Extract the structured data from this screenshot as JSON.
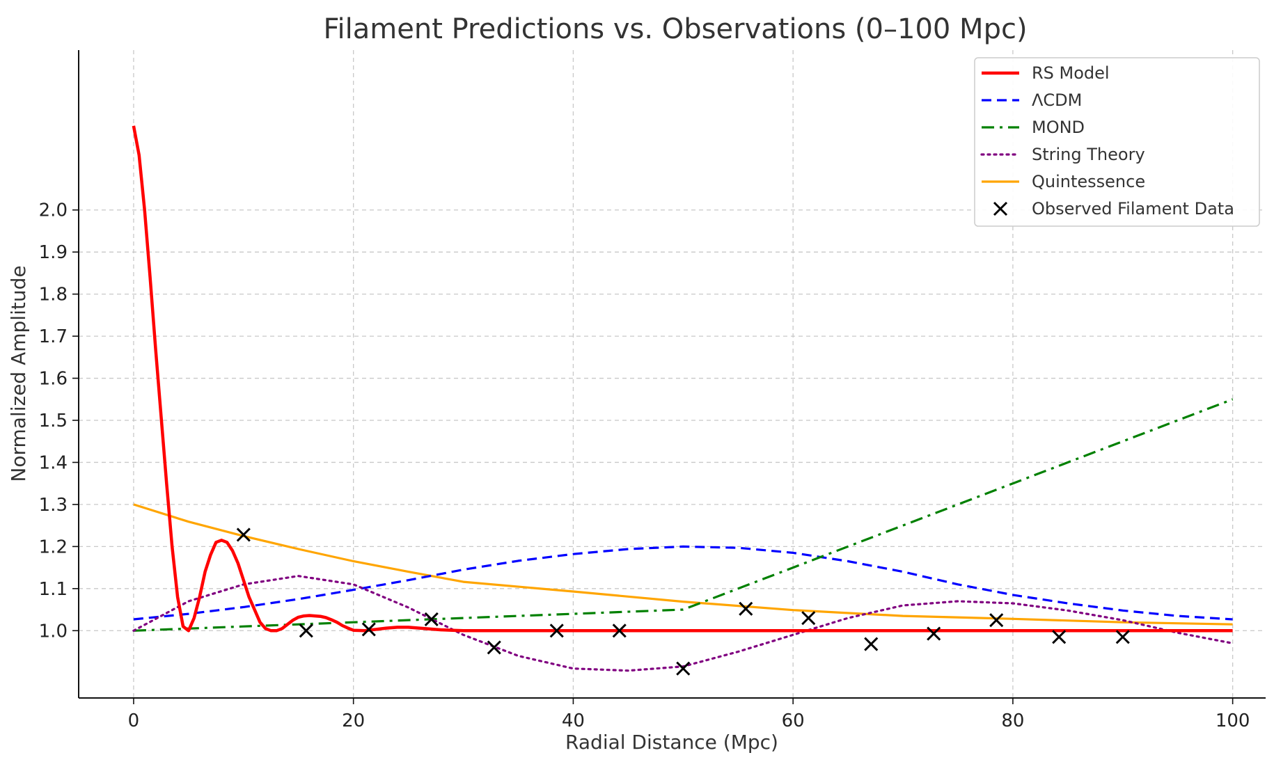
{
  "chart_data": {
    "type": "line",
    "title": "Filament Predictions vs. Observations (0–100 Mpc)",
    "xlabel": "Radial Distance (Mpc)",
    "ylabel": "Normalized Amplitude",
    "xlim": [
      -5,
      103
    ],
    "ylim": [
      0.84,
      2.38
    ],
    "grid": true,
    "legend_position": "top-right",
    "x_ticks": [
      0,
      20,
      40,
      60,
      80,
      100
    ],
    "x_tick_labels": [
      "0",
      "20",
      "40",
      "60",
      "80",
      "100"
    ],
    "y_ticks": [
      1.0,
      1.1,
      1.2,
      1.3,
      1.4,
      1.5,
      1.6,
      1.7,
      1.8,
      1.9,
      2.0
    ],
    "y_tick_labels": [
      "1.0",
      "1.1",
      "1.2",
      "1.3",
      "1.4",
      "1.5",
      "1.6",
      "1.7",
      "1.8",
      "1.9",
      "2.0"
    ],
    "series": [
      {
        "name": "RS Model",
        "style": "solid",
        "color": "#ff0000",
        "x": [
          0,
          0.5,
          1,
          1.5,
          2,
          2.5,
          3,
          3.5,
          4,
          4.5,
          5,
          5.5,
          6,
          6.5,
          7,
          7.5,
          8,
          8.5,
          9,
          9.5,
          10,
          10.5,
          11,
          11.5,
          12,
          12.5,
          13,
          13.5,
          14,
          14.5,
          15,
          15.5,
          16,
          16.5,
          17,
          17.5,
          18,
          18.5,
          19,
          19.5,
          20,
          21,
          22,
          23,
          24,
          25,
          26,
          27,
          28,
          29,
          30,
          32,
          34,
          36,
          38,
          40,
          50,
          60,
          70,
          80,
          90,
          100
        ],
        "y": [
          2.2,
          2.13,
          2.0,
          1.84,
          1.67,
          1.51,
          1.35,
          1.2,
          1.08,
          1.01,
          1.0,
          1.03,
          1.08,
          1.14,
          1.18,
          1.21,
          1.215,
          1.21,
          1.19,
          1.16,
          1.12,
          1.08,
          1.05,
          1.02,
          1.005,
          1.0,
          1.0,
          1.005,
          1.015,
          1.025,
          1.032,
          1.035,
          1.036,
          1.035,
          1.034,
          1.031,
          1.026,
          1.02,
          1.012,
          1.006,
          1.001,
          1.0,
          1.003,
          1.006,
          1.008,
          1.008,
          1.006,
          1.004,
          1.002,
          1.001,
          1.0,
          1.0,
          1.0,
          1.0,
          1.0,
          1.0,
          1.0,
          1.0,
          1.0,
          1.0,
          1.0,
          1.0
        ]
      },
      {
        "name": "ΛCDM",
        "style": "dashed",
        "color": "#0000ff",
        "x": [
          0,
          5,
          10,
          15,
          20,
          25,
          30,
          35,
          40,
          45,
          50,
          55,
          60,
          65,
          70,
          75,
          80,
          85,
          90,
          95,
          100
        ],
        "y": [
          1.027,
          1.04,
          1.056,
          1.075,
          1.097,
          1.12,
          1.145,
          1.166,
          1.182,
          1.194,
          1.2,
          1.197,
          1.185,
          1.165,
          1.14,
          1.11,
          1.085,
          1.065,
          1.048,
          1.035,
          1.027
        ]
      },
      {
        "name": "MOND",
        "style": "dashdot",
        "color": "#008000",
        "x": [
          0,
          10,
          20,
          30,
          40,
          50,
          60,
          70,
          80,
          90,
          100
        ],
        "y": [
          1.0,
          1.01,
          1.02,
          1.03,
          1.04,
          1.05,
          1.15,
          1.25,
          1.35,
          1.45,
          1.55
        ]
      },
      {
        "name": "String Theory",
        "style": "dotted",
        "color": "#800080",
        "x": [
          0,
          5,
          10,
          15,
          20,
          25,
          30,
          35,
          40,
          45,
          50,
          55,
          60,
          65,
          70,
          75,
          80,
          85,
          90,
          95,
          100
        ],
        "y": [
          1.0,
          1.07,
          1.11,
          1.13,
          1.11,
          1.055,
          0.99,
          0.94,
          0.91,
          0.905,
          0.915,
          0.95,
          0.99,
          1.03,
          1.06,
          1.07,
          1.065,
          1.048,
          1.025,
          0.995,
          0.97
        ]
      },
      {
        "name": "Quintessence",
        "style": "solid",
        "color": "#ffa500",
        "x": [
          0,
          5,
          10,
          15,
          20,
          25,
          30,
          40,
          50,
          60,
          70,
          80,
          90,
          100
        ],
        "y": [
          1.3,
          1.259,
          1.225,
          1.194,
          1.165,
          1.14,
          1.116,
          1.093,
          1.069,
          1.049,
          1.035,
          1.028,
          1.02,
          1.015
        ]
      }
    ],
    "scatter": {
      "name": "Observed Filament Data",
      "marker": "x",
      "color": "#000000",
      "x": [
        10,
        15.7,
        21.4,
        27.1,
        32.8,
        38.5,
        44.2,
        50,
        55.7,
        61.4,
        67.1,
        72.8,
        78.5,
        84.2,
        90
      ],
      "y": [
        1.228,
        1.0,
        1.003,
        1.027,
        0.96,
        1.0,
        1.0,
        0.91,
        1.052,
        1.03,
        0.968,
        0.993,
        1.025,
        0.985,
        0.985
      ]
    }
  }
}
